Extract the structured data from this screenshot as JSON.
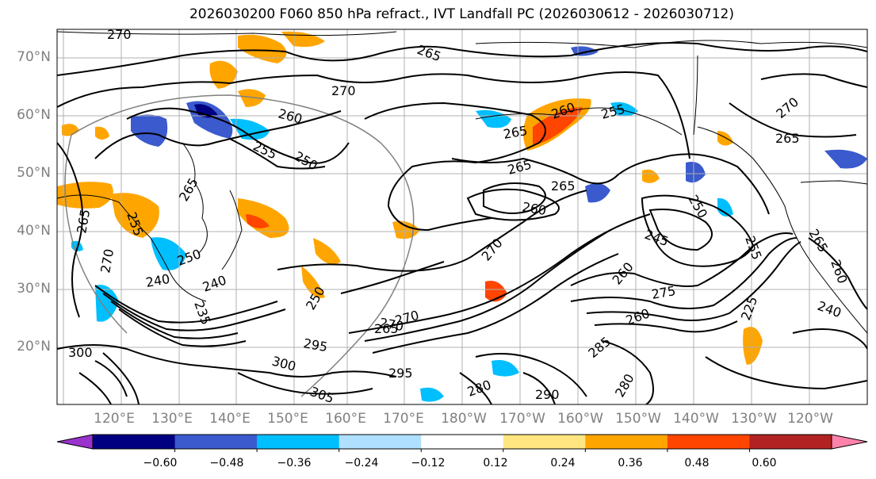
{
  "title": "2026030200 F060 850 hPa refract., IVT Landfall PC (2026030612 - 2026030712)",
  "lat_labels": [
    "70°N",
    "60°N",
    "50°N",
    "40°N",
    "30°N",
    "20°N"
  ],
  "lon_labels": [
    "120°E",
    "130°E",
    "140°E",
    "150°E",
    "160°E",
    "170°E",
    "180°W",
    "170°W",
    "160°W",
    "150°W",
    "140°W",
    "130°W",
    "120°W"
  ],
  "colorbar": {
    "tick_labels": [
      "−0.60",
      "−0.48",
      "−0.36",
      "−0.24",
      "−0.12",
      "0.12",
      "0.24",
      "0.36",
      "0.48",
      "0.60"
    ],
    "colors": [
      "#9a32cd",
      "#000080",
      "#3a5acd",
      "#00bfff",
      "#b0e0ff",
      "#ffffff",
      "#ffe680",
      "#ffa500",
      "#ff4500",
      "#b22222",
      "#ff82ab"
    ]
  },
  "contour_labels": [
    "270",
    "265",
    "270",
    "260",
    "255",
    "250",
    "260",
    "265",
    "265",
    "255",
    "270",
    "265",
    "265",
    "265",
    "260",
    "250",
    "245",
    "255",
    "260",
    "275",
    "270",
    "260",
    "240",
    "240",
    "235",
    "300",
    "295",
    "300",
    "305",
    "295",
    "290",
    "280",
    "285",
    "280",
    "225",
    "240",
    "260",
    "255",
    "270",
    "250",
    "270",
    "265",
    "265",
    "250",
    "270",
    "265"
  ]
}
